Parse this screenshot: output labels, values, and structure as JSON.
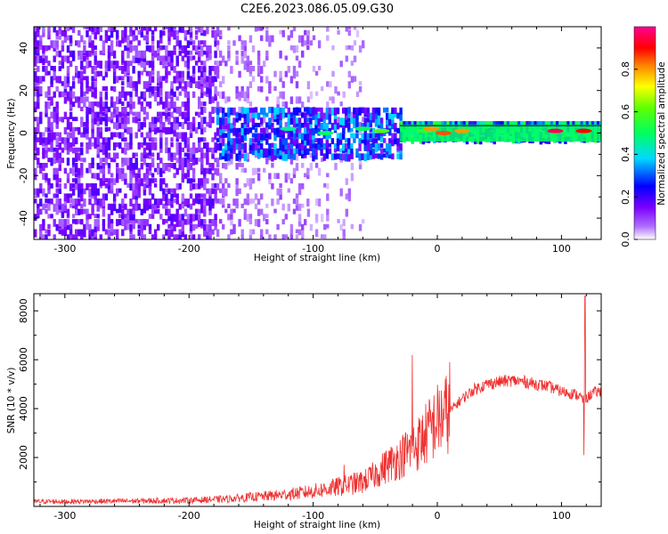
{
  "figure": {
    "title": "C2E6.2023.086.05.09.G30"
  },
  "chart_data": [
    {
      "type": "heatmap",
      "xlabel": "Height of straight line (km)",
      "ylabel": "Frequency (Hz)",
      "xlim": [
        -325,
        132
      ],
      "ylim": [
        -50,
        50
      ],
      "xticks": [
        -300,
        -200,
        -100,
        0,
        100
      ],
      "yticks": [
        -40,
        -20,
        0,
        20,
        40
      ],
      "grid": false,
      "colorbar": {
        "label": "Normalized spectral amplitude",
        "range": [
          0,
          1
        ],
        "ticks": [
          0.0,
          0.2,
          0.4,
          0.6,
          0.8
        ],
        "colors": [
          "#ffffff",
          "#8a00ff",
          "#0000ff",
          "#00e5ff",
          "#00ff00",
          "#ffff00",
          "#ff0000",
          "#ff00a0"
        ]
      },
      "regions": [
        {
          "x_range": [
            -325,
            -178
          ],
          "freq_range": [
            -50,
            50
          ],
          "amplitude": 0.15,
          "density": 0.55
        },
        {
          "x_range": [
            -178,
            -105
          ],
          "freq_range": [
            -50,
            50
          ],
          "amplitude": 0.08,
          "density": 0.25
        },
        {
          "x_range": [
            -105,
            -60
          ],
          "freq_range": [
            -50,
            50
          ],
          "amplitude": 0.06,
          "density": 0.12
        },
        {
          "x_range": [
            -178,
            -30
          ],
          "freq_range": [
            -12,
            12
          ],
          "amplitude": 0.3,
          "density": 0.7
        },
        {
          "x_range": [
            -30,
            132
          ],
          "freq_range": [
            -4,
            4
          ],
          "amplitude": 0.45,
          "density": 1.0
        }
      ],
      "peaks": [
        {
          "x": -120,
          "freq": 2,
          "amplitude": 0.45
        },
        {
          "x": -90,
          "freq": 0,
          "amplitude": 0.5
        },
        {
          "x": -60,
          "freq": 2,
          "amplitude": 0.5
        },
        {
          "x": -45,
          "freq": 1,
          "amplitude": 0.6
        },
        {
          "x": -10,
          "freq": 1,
          "amplitude": 0.55
        },
        {
          "x": -5,
          "freq": 2,
          "amplitude": 0.8
        },
        {
          "x": 5,
          "freq": 0,
          "amplitude": 0.85
        },
        {
          "x": 20,
          "freq": 1,
          "amplitude": 0.8
        },
        {
          "x": 95,
          "freq": 1,
          "amplitude": 0.95
        },
        {
          "x": 118,
          "freq": 1,
          "amplitude": 0.9
        }
      ]
    },
    {
      "type": "line",
      "xlabel": "Height of straight line (km)",
      "ylabel": "SNR (10 * v/v)",
      "xlim": [
        -325,
        132
      ],
      "ylim": [
        0,
        8700
      ],
      "xticks": [
        -300,
        -200,
        -100,
        0,
        100
      ],
      "yticks": [
        2000,
        4000,
        6000,
        8000
      ],
      "grid": false,
      "series": [
        {
          "color": "#f03030",
          "x": [
            -325,
            -300,
            -250,
            -200,
            -170,
            -150,
            -130,
            -110,
            -100,
            -90,
            -80,
            -70,
            -60,
            -50,
            -40,
            -30,
            -25,
            -20,
            -15,
            -10,
            -5,
            0,
            10,
            20,
            30,
            40,
            50,
            60,
            70,
            80,
            90,
            100,
            110,
            115,
            118,
            120,
            122,
            125,
            132
          ],
          "values": [
            200,
            200,
            220,
            250,
            300,
            380,
            450,
            550,
            620,
            700,
            800,
            900,
            1000,
            1300,
            1700,
            2000,
            2200,
            2400,
            2600,
            2900,
            3200,
            3500,
            3900,
            4400,
            4800,
            5000,
            5100,
            5150,
            5100,
            5000,
            4900,
            4700,
            4600,
            4500,
            4300,
            4400,
            4500,
            4650,
            4700
          ],
          "spikes": [
            {
              "x": -20,
              "value": 6200
            },
            {
              "x": 10,
              "value": 5900
            },
            {
              "x": -75,
              "value": 1700
            },
            {
              "x": 119,
              "value": 8600
            },
            {
              "x": 118,
              "value": 2100
            }
          ]
        }
      ]
    }
  ]
}
